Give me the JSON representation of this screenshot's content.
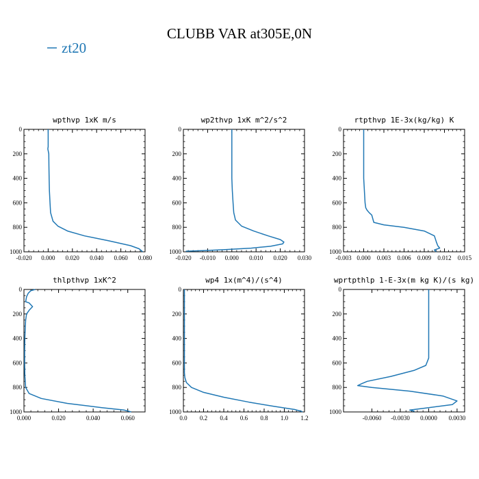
{
  "figure": {
    "title": "CLUBB VAR at305E,0N",
    "legend": [
      {
        "name": "zt20",
        "color": "#1f77b4"
      }
    ]
  },
  "chart_data": [
    {
      "type": "line",
      "title": "wpthvp  1xK m/s",
      "xlim": [
        -0.02,
        0.08
      ],
      "ylim": [
        1000,
        0
      ],
      "xticks": [
        "-0.020",
        "0.000",
        "0.020",
        "0.040",
        "0.060",
        "0.080"
      ],
      "yticks": [
        "0",
        "200",
        "400",
        "600",
        "800",
        "1000"
      ],
      "series": [
        {
          "name": "zt20",
          "color": "#1f77b4",
          "x": [
            0.0,
            0.0,
            0.0,
            -0.0003,
            0.0005,
            0.0006,
            0.0008,
            0.001,
            0.0015,
            0.002,
            0.004,
            0.008,
            0.016,
            0.03,
            0.05,
            0.068,
            0.075,
            0.078
          ],
          "y": [
            0,
            100,
            140,
            160,
            200,
            300,
            400,
            500,
            600,
            680,
            750,
            790,
            830,
            870,
            910,
            950,
            975,
            1000
          ]
        }
      ]
    },
    {
      "type": "line",
      "title": "wp2thvp  1xK m^2/s^2",
      "xlim": [
        -0.02,
        0.03
      ],
      "ylim": [
        1000,
        0
      ],
      "xticks": [
        "-0.020",
        "-0.010",
        "0.000",
        "0.010",
        "0.020",
        "0.030"
      ],
      "yticks": [
        "0",
        "200",
        "400",
        "600",
        "800",
        "1000"
      ],
      "series": [
        {
          "name": "zt20",
          "color": "#1f77b4",
          "x": [
            0.0,
            0.0,
            0.0,
            0.0002,
            0.0005,
            0.0008,
            0.0015,
            0.004,
            0.009,
            0.015,
            0.02,
            0.0215,
            0.021,
            0.016,
            0.008,
            -0.004,
            -0.012,
            -0.019
          ],
          "y": [
            0,
            200,
            400,
            500,
            600,
            680,
            740,
            790,
            830,
            870,
            900,
            920,
            935,
            955,
            970,
            983,
            990,
            995
          ]
        }
      ]
    },
    {
      "type": "line",
      "title": "rtpthvp  1E-3x(kg/kg) K",
      "xlim": [
        -0.003,
        0.015
      ],
      "ylim": [
        1000,
        0
      ],
      "xticks": [
        "-0.003",
        "0.000",
        "0.003",
        "0.006",
        "0.009",
        "0.012",
        "0.015"
      ],
      "yticks": [
        "0",
        "200",
        "400",
        "600",
        "800",
        "1000"
      ],
      "series": [
        {
          "name": "zt20",
          "color": "#1f77b4",
          "x": [
            0.0,
            0.0,
            0.0,
            0.0001,
            0.0002,
            0.0003,
            0.0005,
            0.0008,
            0.0012,
            0.0014,
            0.0015,
            0.003,
            0.006,
            0.009,
            0.0105,
            0.0108,
            0.011,
            0.0113,
            0.0105,
            0.0108
          ],
          "y": [
            0,
            200,
            400,
            500,
            600,
            640,
            660,
            680,
            700,
            740,
            760,
            780,
            800,
            830,
            870,
            920,
            950,
            970,
            985,
            1000
          ]
        }
      ]
    },
    {
      "type": "line",
      "title": "thlpthvp  1xK^2",
      "xlim": [
        0.0,
        0.07
      ],
      "ylim": [
        1000,
        0
      ],
      "xticks": [
        "0.000",
        "0.020",
        "0.040",
        "0.060"
      ],
      "yticks": [
        "0",
        "200",
        "400",
        "600",
        "800",
        "1000"
      ],
      "series": [
        {
          "name": "zt20",
          "color": "#1f77b4",
          "x": [
            0.0065,
            0.004,
            0.0025,
            0.0015,
            0.001,
            0.003,
            0.005,
            0.003,
            0.0015,
            0.001,
            0.0008,
            0.0005,
            0.0004,
            0.0004,
            0.0005,
            0.001,
            0.003,
            0.01,
            0.025,
            0.045,
            0.058,
            0.062
          ],
          "y": [
            0,
            10,
            30,
            60,
            100,
            110,
            140,
            170,
            200,
            250,
            300,
            400,
            500,
            600,
            700,
            800,
            850,
            890,
            930,
            965,
            985,
            1000
          ]
        }
      ]
    },
    {
      "type": "line",
      "title": "wp4  1x(m^4)/(s^4)",
      "xlim": [
        0.0,
        1.2
      ],
      "ylim": [
        1000,
        0
      ],
      "xticks": [
        "0.0",
        "0.2",
        "0.4",
        "0.6",
        "0.8",
        "1.0",
        "1.2"
      ],
      "yticks": [
        "0",
        "200",
        "400",
        "600",
        "800",
        "1000"
      ],
      "series": [
        {
          "name": "zt20",
          "color": "#1f77b4",
          "x": [
            0.01,
            0.01,
            0.01,
            0.01,
            0.01,
            0.01,
            0.015,
            0.03,
            0.08,
            0.2,
            0.4,
            0.65,
            0.9,
            1.1,
            1.17,
            1.18
          ],
          "y": [
            0,
            100,
            200,
            400,
            600,
            680,
            720,
            760,
            800,
            840,
            880,
            920,
            955,
            980,
            995,
            1000
          ]
        }
      ]
    },
    {
      "type": "line",
      "title": "wprtpthlp  1-E-3x(m kg K)/(s kg)",
      "xlim": [
        -0.009,
        0.0038
      ],
      "ylim": [
        1000,
        0
      ],
      "xticks": [
        "-0.0060",
        "-0.0030",
        "0.0000",
        "0.0030"
      ],
      "yticks": [
        "0",
        "200",
        "400",
        "600",
        "800",
        "1000"
      ],
      "series": [
        {
          "name": "zt20",
          "color": "#1f77b4",
          "x": [
            0.0,
            0.0,
            0.0,
            0.0,
            -0.0003,
            -0.0015,
            -0.004,
            -0.0065,
            -0.0071,
            -0.0075,
            -0.006,
            -0.002,
            0.0015,
            0.003,
            0.0025,
            0.0,
            -0.002,
            -0.0015
          ],
          "y": [
            0,
            200,
            400,
            560,
            620,
            660,
            710,
            750,
            770,
            785,
            800,
            830,
            870,
            910,
            940,
            965,
            985,
            995
          ]
        }
      ]
    }
  ]
}
